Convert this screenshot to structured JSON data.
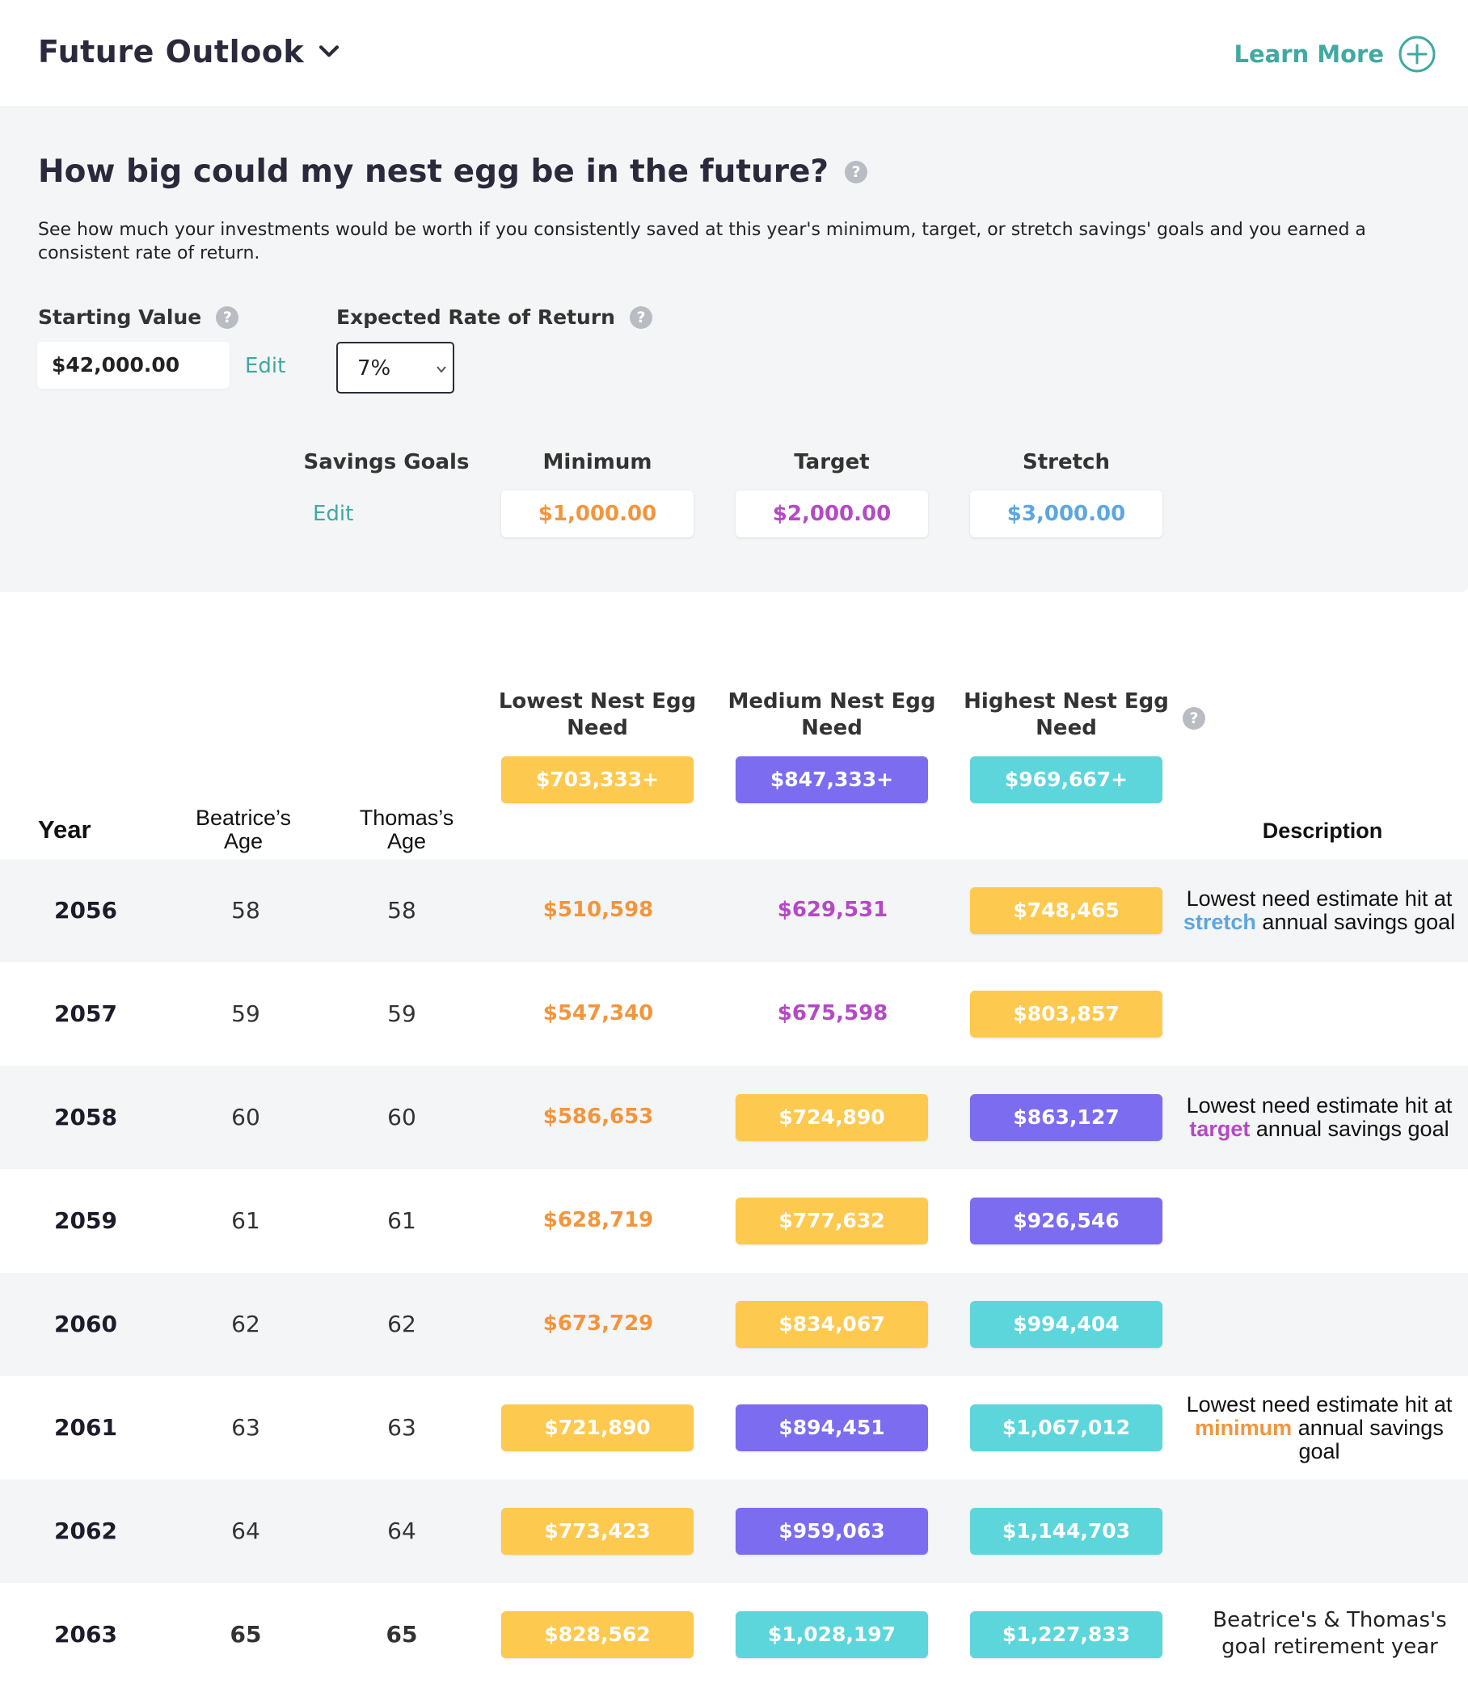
{
  "header": {
    "title": "Future Outlook",
    "learn_more": "Learn More"
  },
  "intro": {
    "question": "How big could my nest egg be in the future?",
    "description": "See how much your investments would be worth if you consistently saved at this year's minimum, target, or stretch savings' goals and you earned a consistent rate of return."
  },
  "starting_value": {
    "label": "Starting Value",
    "value": "$42,000.00",
    "edit": "Edit"
  },
  "rate_of_return": {
    "label": "Expected Rate of Return",
    "selected": "7%"
  },
  "savings_goals": {
    "label": "Savings Goals",
    "edit": "Edit",
    "minimum_label": "Minimum",
    "minimum_value": "$1,000.00",
    "target_label": "Target",
    "target_value": "$2,000.00",
    "stretch_label": "Stretch",
    "stretch_value": "$3,000.00"
  },
  "colors": {
    "orange_text": "#f2953c",
    "purple_text": "#b549c5",
    "blue_text": "#5aa7e3",
    "yellow_pill": "#fdc94f",
    "purple_pill": "#7b6cf0",
    "teal_pill": "#5dd6db",
    "teal_link": "#3fa9a2"
  },
  "needs": {
    "lowest_label": "Lowest Nest Egg Need",
    "lowest_value": "$703,333+",
    "medium_label": "Medium Nest Egg Need",
    "medium_value": "$847,333+",
    "highest_label": "Highest Nest Egg Need",
    "highest_value": "$969,667+"
  },
  "table_headers": {
    "year": "Year",
    "person1_age": "Beatrice’s Age",
    "person2_age": "Thomas’s Age",
    "description": "Description"
  },
  "rows": [
    {
      "year": "2056",
      "age1": "58",
      "age2": "58",
      "low": {
        "text": "$510,598",
        "style": "orange"
      },
      "med": {
        "text": "$629,531",
        "style": "purple"
      },
      "high": {
        "text": "$748,465",
        "style": "yellow"
      },
      "desc_pre": "Lowest need estimate hit at",
      "desc_kw": "stretch",
      "desc_post": "annual savings goal",
      "desc_kw_color": "#5aa7e3"
    },
    {
      "year": "2057",
      "age1": "59",
      "age2": "59",
      "low": {
        "text": "$547,340",
        "style": "orange"
      },
      "med": {
        "text": "$675,598",
        "style": "purple"
      },
      "high": {
        "text": "$803,857",
        "style": "yellow"
      }
    },
    {
      "year": "2058",
      "age1": "60",
      "age2": "60",
      "low": {
        "text": "$586,653",
        "style": "orange"
      },
      "med": {
        "text": "$724,890",
        "style": "yellow"
      },
      "high": {
        "text": "$863,127",
        "style": "purple-pill"
      },
      "desc_pre": "Lowest need estimate hit at",
      "desc_kw": "target",
      "desc_post": "annual savings goal",
      "desc_kw_color": "#b549c5"
    },
    {
      "year": "2059",
      "age1": "61",
      "age2": "61",
      "low": {
        "text": "$628,719",
        "style": "orange"
      },
      "med": {
        "text": "$777,632",
        "style": "yellow"
      },
      "high": {
        "text": "$926,546",
        "style": "purple-pill"
      }
    },
    {
      "year": "2060",
      "age1": "62",
      "age2": "62",
      "low": {
        "text": "$673,729",
        "style": "orange"
      },
      "med": {
        "text": "$834,067",
        "style": "yellow"
      },
      "high": {
        "text": "$994,404",
        "style": "teal"
      }
    },
    {
      "year": "2061",
      "age1": "63",
      "age2": "63",
      "low": {
        "text": "$721,890",
        "style": "yellow"
      },
      "med": {
        "text": "$894,451",
        "style": "purple-pill"
      },
      "high": {
        "text": "$1,067,012",
        "style": "teal"
      },
      "desc_pre": "Lowest need estimate hit at",
      "desc_kw": "minimum",
      "desc_post": "annual savings goal",
      "desc_kw_color": "#f2953c"
    },
    {
      "year": "2062",
      "age1": "64",
      "age2": "64",
      "low": {
        "text": "$773,423",
        "style": "yellow"
      },
      "med": {
        "text": "$959,063",
        "style": "purple-pill"
      },
      "high": {
        "text": "$1,144,703",
        "style": "teal"
      }
    },
    {
      "year": "2063",
      "age1": "65",
      "age2": "65",
      "bold_ages": true,
      "low": {
        "text": "$828,562",
        "style": "yellow"
      },
      "med": {
        "text": "$1,028,197",
        "style": "teal"
      },
      "high": {
        "text": "$1,227,833",
        "style": "teal"
      },
      "retire_note": "Beatrice's & Thomas's goal retirement year"
    }
  ]
}
